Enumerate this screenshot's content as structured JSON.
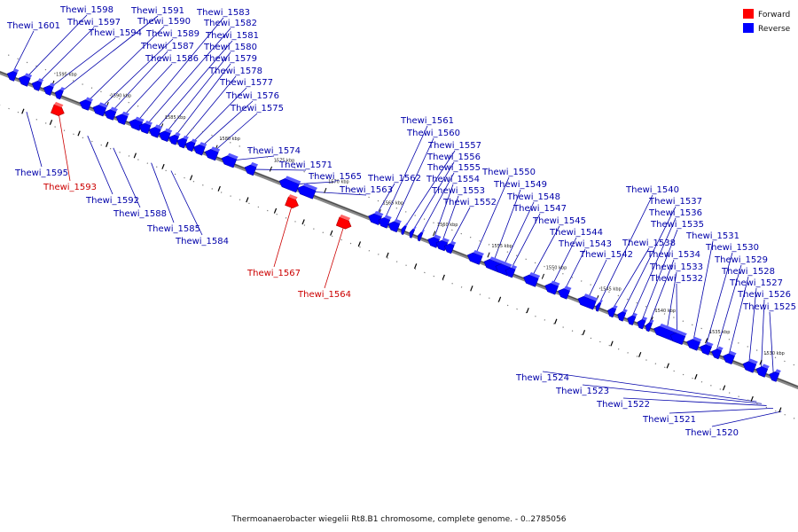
{
  "legend": {
    "forward_label": "Forward",
    "reverse_label": "Reverse",
    "forward_color": "#ff0000",
    "reverse_color": "#0000ff"
  },
  "caption": "Thermoanaerobacter wiegelii Rt8.B1 chromosome, complete genome. - 0..2785056",
  "kbp_ticks": [
    "1595 kbp",
    "1590 kbp",
    "1585 kbp",
    "1580 kbp",
    "1575 kbp",
    "1570 kbp",
    "1565 kbp",
    "1560 kbp",
    "1555 kbp",
    "1550 kbp",
    "1545 kbp",
    "1540 kbp",
    "1535 kbp",
    "1530 kbp",
    "1525 kbp"
  ],
  "genes": [
    {
      "name": "Thewi_1601",
      "strand": "reverse"
    },
    {
      "name": "Thewi_1598",
      "strand": "reverse"
    },
    {
      "name": "Thewi_1597",
      "strand": "reverse"
    },
    {
      "name": "Thewi_1594",
      "strand": "reverse"
    },
    {
      "name": "Thewi_1591",
      "strand": "reverse"
    },
    {
      "name": "Thewi_1590",
      "strand": "reverse"
    },
    {
      "name": "Thewi_1589",
      "strand": "reverse"
    },
    {
      "name": "Thewi_1587",
      "strand": "reverse"
    },
    {
      "name": "Thewi_1586",
      "strand": "reverse"
    },
    {
      "name": "Thewi_1583",
      "strand": "reverse"
    },
    {
      "name": "Thewi_1582",
      "strand": "reverse"
    },
    {
      "name": "Thewi_1581",
      "strand": "reverse"
    },
    {
      "name": "Thewi_1580",
      "strand": "reverse"
    },
    {
      "name": "Thewi_1579",
      "strand": "reverse"
    },
    {
      "name": "Thewi_1578",
      "strand": "reverse"
    },
    {
      "name": "Thewi_1577",
      "strand": "reverse"
    },
    {
      "name": "Thewi_1576",
      "strand": "reverse"
    },
    {
      "name": "Thewi_1575",
      "strand": "reverse"
    },
    {
      "name": "Thewi_1574",
      "strand": "reverse"
    },
    {
      "name": "Thewi_1571",
      "strand": "reverse"
    },
    {
      "name": "Thewi_1565",
      "strand": "reverse"
    },
    {
      "name": "Thewi_1563",
      "strand": "reverse"
    },
    {
      "name": "Thewi_1562",
      "strand": "reverse"
    },
    {
      "name": "Thewi_1561",
      "strand": "reverse"
    },
    {
      "name": "Thewi_1560",
      "strand": "reverse"
    },
    {
      "name": "Thewi_1557",
      "strand": "reverse"
    },
    {
      "name": "Thewi_1556",
      "strand": "reverse"
    },
    {
      "name": "Thewi_1555",
      "strand": "reverse"
    },
    {
      "name": "Thewi_1554",
      "strand": "reverse"
    },
    {
      "name": "Thewi_1553",
      "strand": "reverse"
    },
    {
      "name": "Thewi_1552",
      "strand": "reverse"
    },
    {
      "name": "Thewi_1550",
      "strand": "reverse"
    },
    {
      "name": "Thewi_1549",
      "strand": "reverse"
    },
    {
      "name": "Thewi_1548",
      "strand": "reverse"
    },
    {
      "name": "Thewi_1547",
      "strand": "reverse"
    },
    {
      "name": "Thewi_1545",
      "strand": "reverse"
    },
    {
      "name": "Thewi_1544",
      "strand": "reverse"
    },
    {
      "name": "Thewi_1543",
      "strand": "reverse"
    },
    {
      "name": "Thewi_1542",
      "strand": "reverse"
    },
    {
      "name": "Thewi_1540",
      "strand": "reverse"
    },
    {
      "name": "Thewi_1538",
      "strand": "reverse"
    },
    {
      "name": "Thewi_1537",
      "strand": "reverse"
    },
    {
      "name": "Thewi_1536",
      "strand": "reverse"
    },
    {
      "name": "Thewi_1535",
      "strand": "reverse"
    },
    {
      "name": "Thewi_1534",
      "strand": "reverse"
    },
    {
      "name": "Thewi_1533",
      "strand": "reverse"
    },
    {
      "name": "Thewi_1532",
      "strand": "reverse"
    },
    {
      "name": "Thewi_1531",
      "strand": "reverse"
    },
    {
      "name": "Thewi_1530",
      "strand": "reverse"
    },
    {
      "name": "Thewi_1529",
      "strand": "reverse"
    },
    {
      "name": "Thewi_1528",
      "strand": "reverse"
    },
    {
      "name": "Thewi_1527",
      "strand": "reverse"
    },
    {
      "name": "Thewi_1526",
      "strand": "reverse"
    },
    {
      "name": "Thewi_1525",
      "strand": "reverse"
    },
    {
      "name": "Thewi_1595",
      "strand": "reverse"
    },
    {
      "name": "Thewi_1593",
      "strand": "forward"
    },
    {
      "name": "Thewi_1592",
      "strand": "reverse"
    },
    {
      "name": "Thewi_1588",
      "strand": "reverse"
    },
    {
      "name": "Thewi_1585",
      "strand": "reverse"
    },
    {
      "name": "Thewi_1584",
      "strand": "reverse"
    },
    {
      "name": "Thewi_1567",
      "strand": "forward"
    },
    {
      "name": "Thewi_1564",
      "strand": "forward"
    },
    {
      "name": "Thewi_1524",
      "strand": "reverse"
    },
    {
      "name": "Thewi_1523",
      "strand": "reverse"
    },
    {
      "name": "Thewi_1522",
      "strand": "reverse"
    },
    {
      "name": "Thewi_1521",
      "strand": "reverse"
    },
    {
      "name": "Thewi_1520",
      "strand": "reverse"
    }
  ]
}
